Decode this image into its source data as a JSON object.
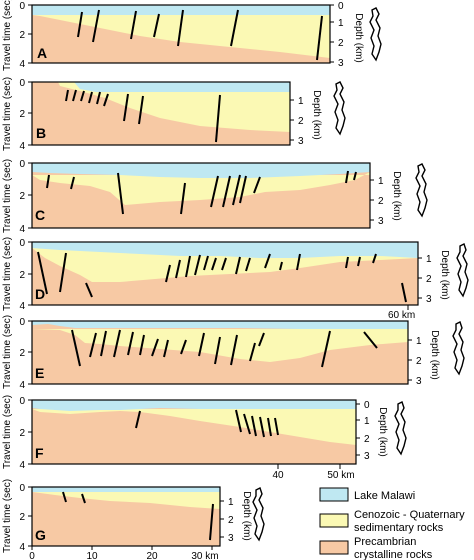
{
  "colors": {
    "water": "#bfe8f2",
    "sediment": "#fbf9b4",
    "basement": "#f7c9a4",
    "ink": "#000000",
    "lake_outline": "#000000"
  },
  "axis_labels": {
    "travel_time": "Travel time (sec)",
    "depth": "Depth (km)"
  },
  "panels": [
    {
      "id": "A",
      "time_ticks": [
        "0",
        "2",
        "4"
      ],
      "depth_ticks": [
        "0",
        "1",
        "2",
        "3"
      ]
    },
    {
      "id": "B",
      "time_ticks": [
        "0",
        "2",
        "4"
      ],
      "depth_ticks": [
        "1",
        "2",
        "3"
      ]
    },
    {
      "id": "C",
      "time_ticks": [
        "0",
        "2",
        "4"
      ],
      "depth_ticks": [
        "1",
        "2",
        "3"
      ]
    },
    {
      "id": "D",
      "time_ticks": [
        "0",
        "2",
        "4"
      ],
      "depth_ticks": [
        "1",
        "2",
        "3"
      ]
    },
    {
      "id": "E",
      "time_ticks": [
        "0",
        "2",
        "4"
      ],
      "depth_ticks": [
        "1",
        "2",
        "3"
      ]
    },
    {
      "id": "F",
      "time_ticks": [
        "0",
        "2",
        "4"
      ],
      "depth_ticks": [
        "0",
        "1",
        "2",
        "3"
      ]
    },
    {
      "id": "G",
      "time_ticks": [
        "0",
        "2",
        "4"
      ],
      "depth_ticks": [
        "1",
        "2",
        "3"
      ]
    }
  ],
  "scales": {
    "d_scale_label": "60 km",
    "f_scale_labels": [
      "40",
      "50 km"
    ],
    "g_scale_labels": [
      "0",
      "10",
      "20",
      "30 km"
    ]
  },
  "legend": {
    "items": [
      {
        "key": "water",
        "label": "Lake Malawi"
      },
      {
        "key": "sediment",
        "label": "Cenozoic - Quaternary sedimentary rocks"
      },
      {
        "key": "basement",
        "label": "Precambrian crystalline rocks"
      }
    ]
  }
}
